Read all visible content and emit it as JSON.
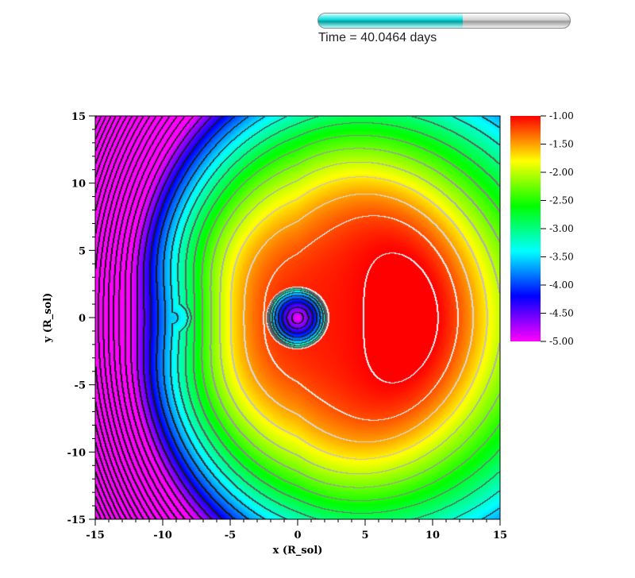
{
  "time_label": "Time = 40.0464 days",
  "time_progress": 0.575,
  "chart_data": {
    "type": "heatmap",
    "title": "",
    "xlabel": "x (R_sol)",
    "ylabel": "y (R_sol)",
    "xlim": [
      -15,
      15
    ],
    "ylim": [
      -15,
      15
    ],
    "x_ticks": [
      -15,
      -10,
      -5,
      0,
      5,
      10,
      15
    ],
    "y_ticks": [
      -15,
      -10,
      -5,
      0,
      5,
      10,
      15
    ],
    "x_tick_labels": [
      "-15",
      "-10",
      "-5",
      "0",
      "5",
      "10",
      "15"
    ],
    "y_tick_labels": [
      "-15",
      "-10",
      "-5",
      "0",
      "5",
      "10",
      "15"
    ],
    "colorbar": {
      "min": -5.0,
      "max": -1.0,
      "ticks": [
        -1.0,
        -1.5,
        -2.0,
        -2.5,
        -3.0,
        -3.5,
        -4.0,
        -4.5,
        -5.0
      ],
      "tick_labels": [
        "-1.00",
        "-1.50",
        "-2.00",
        "-2.50",
        "-3.00",
        "-3.50",
        "-4.00",
        "-4.50",
        "-5.00"
      ],
      "colors": [
        "#ff0000",
        "#ffff00",
        "#00ff00",
        "#00ffff",
        "#0000ff",
        "#ff00ff"
      ]
    },
    "sources": [
      {
        "x": 0.0,
        "y": 0.0,
        "core_value": -5.0
      },
      {
        "x": -9.3,
        "y": 0.0,
        "core_value": -3.6
      }
    ],
    "maximum_region": {
      "x": 10.0,
      "y": 0.0,
      "value": -1.0
    }
  }
}
